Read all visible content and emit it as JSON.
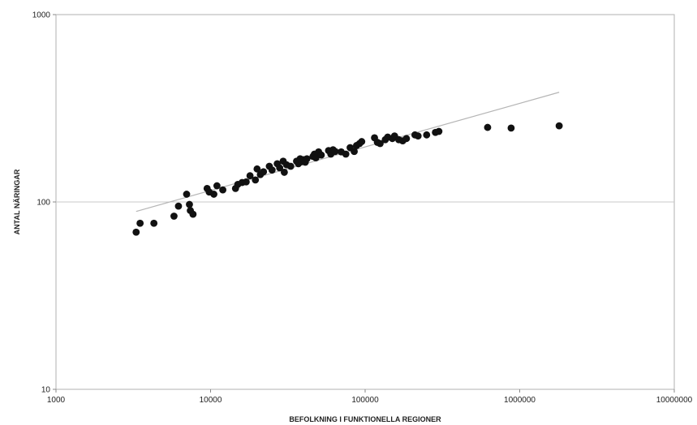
{
  "chart_data": {
    "type": "scatter",
    "title": "",
    "xlabel": "BEFOLKNING I FUNKTIONELLA REGIONER",
    "ylabel": "ANTAL NÄRINGAR",
    "x_scale": "log",
    "y_scale": "log",
    "xlim": [
      1000,
      10000000
    ],
    "ylim": [
      10,
      1000
    ],
    "x_ticks": [
      1000,
      10000,
      100000,
      1000000,
      10000000
    ],
    "x_tick_labels": [
      "1000",
      "10000",
      "100000",
      "1000000",
      "10000000"
    ],
    "y_ticks": [
      10,
      100,
      1000
    ],
    "y_tick_labels": [
      "10",
      "100",
      "1000"
    ],
    "grid": "horizontal at 100",
    "legend": "none",
    "colors": {
      "points": "#111111",
      "trendline": "#b5b5b5",
      "gridline": "#c9c9c9",
      "frame": "#b0b0b0"
    },
    "trendline": {
      "type": "power",
      "x": [
        3300,
        1800000
      ],
      "y": [
        89,
        385
      ]
    },
    "points": [
      {
        "x": 3300,
        "y": 69
      },
      {
        "x": 3500,
        "y": 77
      },
      {
        "x": 4300,
        "y": 77
      },
      {
        "x": 5800,
        "y": 84
      },
      {
        "x": 6200,
        "y": 95
      },
      {
        "x": 7000,
        "y": 110
      },
      {
        "x": 7300,
        "y": 97
      },
      {
        "x": 7400,
        "y": 90
      },
      {
        "x": 7700,
        "y": 86
      },
      {
        "x": 9500,
        "y": 118
      },
      {
        "x": 9800,
        "y": 113
      },
      {
        "x": 10500,
        "y": 110
      },
      {
        "x": 11000,
        "y": 122
      },
      {
        "x": 12000,
        "y": 116
      },
      {
        "x": 14500,
        "y": 118
      },
      {
        "x": 15000,
        "y": 124
      },
      {
        "x": 16000,
        "y": 127
      },
      {
        "x": 17000,
        "y": 128
      },
      {
        "x": 18000,
        "y": 138
      },
      {
        "x": 19500,
        "y": 131
      },
      {
        "x": 20000,
        "y": 150
      },
      {
        "x": 21000,
        "y": 140
      },
      {
        "x": 22000,
        "y": 145
      },
      {
        "x": 24000,
        "y": 155
      },
      {
        "x": 25000,
        "y": 148
      },
      {
        "x": 27000,
        "y": 160
      },
      {
        "x": 28000,
        "y": 152
      },
      {
        "x": 29500,
        "y": 165
      },
      {
        "x": 30000,
        "y": 144
      },
      {
        "x": 31000,
        "y": 158
      },
      {
        "x": 33000,
        "y": 155
      },
      {
        "x": 36000,
        "y": 165
      },
      {
        "x": 37000,
        "y": 160
      },
      {
        "x": 38000,
        "y": 170
      },
      {
        "x": 39000,
        "y": 164
      },
      {
        "x": 40000,
        "y": 168
      },
      {
        "x": 41000,
        "y": 163
      },
      {
        "x": 42000,
        "y": 170
      },
      {
        "x": 46000,
        "y": 175
      },
      {
        "x": 47000,
        "y": 180
      },
      {
        "x": 48000,
        "y": 172
      },
      {
        "x": 50000,
        "y": 185
      },
      {
        "x": 52000,
        "y": 178
      },
      {
        "x": 58000,
        "y": 188
      },
      {
        "x": 60000,
        "y": 180
      },
      {
        "x": 62000,
        "y": 190
      },
      {
        "x": 64000,
        "y": 186
      },
      {
        "x": 70000,
        "y": 185
      },
      {
        "x": 75000,
        "y": 180
      },
      {
        "x": 80000,
        "y": 195
      },
      {
        "x": 85000,
        "y": 186
      },
      {
        "x": 88000,
        "y": 200
      },
      {
        "x": 92000,
        "y": 205
      },
      {
        "x": 95000,
        "y": 210
      },
      {
        "x": 115000,
        "y": 220
      },
      {
        "x": 120000,
        "y": 208
      },
      {
        "x": 125000,
        "y": 205
      },
      {
        "x": 135000,
        "y": 215
      },
      {
        "x": 140000,
        "y": 222
      },
      {
        "x": 150000,
        "y": 218
      },
      {
        "x": 155000,
        "y": 225
      },
      {
        "x": 165000,
        "y": 215
      },
      {
        "x": 175000,
        "y": 212
      },
      {
        "x": 185000,
        "y": 218
      },
      {
        "x": 210000,
        "y": 228
      },
      {
        "x": 220000,
        "y": 225
      },
      {
        "x": 250000,
        "y": 228
      },
      {
        "x": 285000,
        "y": 235
      },
      {
        "x": 300000,
        "y": 238
      },
      {
        "x": 620000,
        "y": 250
      },
      {
        "x": 880000,
        "y": 248
      },
      {
        "x": 1800000,
        "y": 255
      }
    ]
  }
}
